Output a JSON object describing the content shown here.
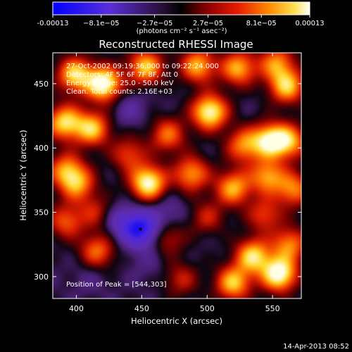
{
  "colorbar": {
    "labels": [
      "-0.00013",
      "−8.1e−05",
      "−2.7e−05",
      "2.7e−05",
      "8.1e−05",
      "0.00013"
    ],
    "values": [
      -0.00013,
      -8.1e-05,
      -2.7e-05,
      2.7e-05,
      8.1e-05,
      0.00013
    ],
    "unit_label": "(photons cm⁻² s⁻¹ asec⁻²)"
  },
  "title": "Reconstructed RHESSI Image",
  "info_lines": [
    "27-Oct-2002 09:19:36.000 to 09:22:24.000",
    "Detectors: 4F 5F 6F 7F 8F, Att 0",
    "Energy Range: 25.0 - 50.0 keV",
    "Clean. Total counts: 2.16E+03"
  ],
  "peak_text": "Position of Peak = [544,303]",
  "footer_date": "14-Apr-2013 08:52",
  "chart_data": {
    "type": "heatmap",
    "title": "Reconstructed RHESSI Image",
    "xlabel": "Heliocentric X (arcsec)",
    "ylabel": "Heliocentric Y (arcsec)",
    "xlim": [
      382,
      572
    ],
    "ylim": [
      283,
      474
    ],
    "x_ticks": [
      400,
      450,
      500,
      550
    ],
    "y_ticks": [
      300,
      350,
      400,
      450
    ],
    "z_range": [
      -0.00013,
      0.00013
    ],
    "colormap": "blue-purple-black-red-orange-yellow-white",
    "peak_position": [
      544,
      303
    ],
    "min_marker": [
      449,
      337
    ],
    "blobs": [
      {
        "x": 399,
        "y": 457,
        "v": 0.8
      },
      {
        "x": 421,
        "y": 450,
        "v": 1.0
      },
      {
        "x": 453,
        "y": 463,
        "v": 0.75
      },
      {
        "x": 493,
        "y": 464,
        "v": 0.7
      },
      {
        "x": 524,
        "y": 462,
        "v": 0.7
      },
      {
        "x": 561,
        "y": 448,
        "v": 0.75
      },
      {
        "x": 553,
        "y": 466,
        "v": 0.6
      },
      {
        "x": 391,
        "y": 420,
        "v": 0.8
      },
      {
        "x": 412,
        "y": 415,
        "v": 0.75
      },
      {
        "x": 502,
        "y": 428,
        "v": 0.95
      },
      {
        "x": 470,
        "y": 410,
        "v": 0.55
      },
      {
        "x": 528,
        "y": 402,
        "v": 0.6
      },
      {
        "x": 563,
        "y": 405,
        "v": 0.65
      },
      {
        "x": 548,
        "y": 406,
        "v": 0.85
      },
      {
        "x": 440,
        "y": 395,
        "v": 0.45
      },
      {
        "x": 392,
        "y": 383,
        "v": 0.6
      },
      {
        "x": 401,
        "y": 372,
        "v": 0.6
      },
      {
        "x": 455,
        "y": 373,
        "v": 0.95
      },
      {
        "x": 488,
        "y": 380,
        "v": 0.65
      },
      {
        "x": 520,
        "y": 369,
        "v": 0.7
      },
      {
        "x": 546,
        "y": 378,
        "v": 0.65
      },
      {
        "x": 566,
        "y": 368,
        "v": 0.6
      },
      {
        "x": 392,
        "y": 343,
        "v": 0.5
      },
      {
        "x": 415,
        "y": 350,
        "v": 0.35
      },
      {
        "x": 544,
        "y": 348,
        "v": 0.45
      },
      {
        "x": 500,
        "y": 346,
        "v": 0.35
      },
      {
        "x": 470,
        "y": 330,
        "v": 0.35
      },
      {
        "x": 416,
        "y": 320,
        "v": 0.55
      },
      {
        "x": 535,
        "y": 316,
        "v": 0.8
      },
      {
        "x": 555,
        "y": 302,
        "v": 1.0
      },
      {
        "x": 520,
        "y": 295,
        "v": 0.75
      },
      {
        "x": 563,
        "y": 325,
        "v": 0.6
      },
      {
        "x": 480,
        "y": 298,
        "v": 0.35
      },
      {
        "x": 449,
        "y": 337,
        "v": -0.85
      },
      {
        "x": 433,
        "y": 343,
        "v": -0.3
      },
      {
        "x": 470,
        "y": 350,
        "v": -0.2
      },
      {
        "x": 440,
        "y": 430,
        "v": -0.2
      },
      {
        "x": 455,
        "y": 310,
        "v": -0.1
      },
      {
        "x": 410,
        "y": 300,
        "v": -0.1
      }
    ]
  }
}
